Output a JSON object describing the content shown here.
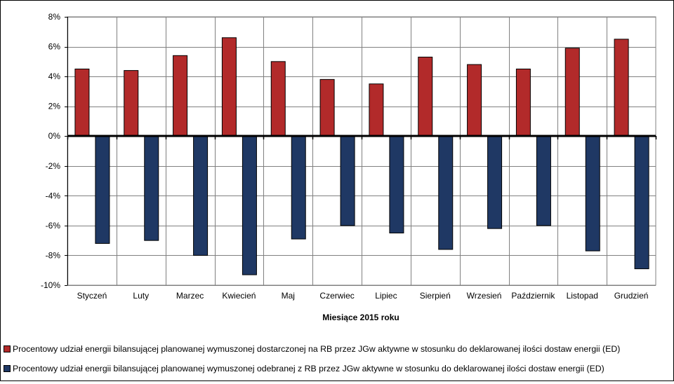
{
  "chart_data": {
    "type": "bar",
    "categories": [
      "Styczeń",
      "Luty",
      "Marzec",
      "Kwiecień",
      "Maj",
      "Czerwiec",
      "Lipiec",
      "Sierpień",
      "Wrzesień",
      "Październik",
      "Listopad",
      "Grudzień"
    ],
    "series": [
      {
        "name": "Procentowy udział energii bilansującej planowanej wymuszonej dostarczonej na RB przez JGw aktywne w stosunku do deklarowanej ilości dostaw energii (ED)",
        "color": "#B22A2A",
        "values": [
          4.5,
          4.4,
          5.4,
          6.6,
          5.0,
          3.8,
          3.5,
          5.3,
          4.8,
          4.5,
          5.9,
          6.5
        ]
      },
      {
        "name": "Procentowy udział energii bilansującej planowanej wymuszonej odebranej z RB przez JGw aktywne w stosunku do deklarowanej ilości dostaw energii (ED)",
        "color": "#1F3864",
        "values": [
          -7.2,
          -7.0,
          -8.0,
          -9.3,
          -6.9,
          -6.0,
          -6.5,
          -7.6,
          -6.2,
          -6.0,
          -7.7,
          -8.9
        ]
      }
    ],
    "yticks": [
      "8%",
      "6%",
      "4%",
      "2%",
      "0%",
      "-2%",
      "-4%",
      "-6%",
      "-8%",
      "-10%"
    ],
    "ylim": [
      -10,
      8
    ],
    "xlabel": "Miesiące 2015  roku",
    "ylabel": "",
    "grid": true,
    "legend": "bottom"
  }
}
